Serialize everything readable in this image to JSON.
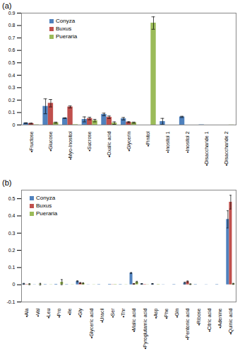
{
  "chart_data": [
    {
      "type": "bar",
      "title": "(a)",
      "categories": [
        "•Fructose",
        "•Glucose",
        "•Myo-Inositol",
        "•Sucrose",
        "•Oxalic acid",
        "•Glycerin",
        "•Pinitol",
        "•Inositol 1",
        "•Inositol 2",
        "•Disaccharide 1",
        "•Disaccharide 2"
      ],
      "series": [
        {
          "name": "Conyza",
          "color": "#4f81bd",
          "values": [
            0.015,
            0.15,
            0.055,
            0.045,
            0.085,
            0.05,
            0,
            0.028,
            0.065,
            0.002,
            0
          ],
          "errors": [
            0.003,
            0.06,
            0.003,
            0.02,
            0.01,
            0.01,
            0,
            0.025,
            0.005,
            0,
            0
          ]
        },
        {
          "name": "Buxus",
          "color": "#c0504d",
          "values": [
            0.012,
            0.175,
            0.145,
            0.052,
            0.062,
            0.022,
            0,
            0,
            0,
            0,
            0
          ],
          "errors": [
            0.003,
            0.03,
            0.008,
            0.01,
            0.01,
            0.005,
            0,
            0,
            0,
            0,
            0
          ]
        },
        {
          "name": "Pueraria",
          "color": "#9bbb59",
          "values": [
            0.002,
            0.018,
            0.003,
            0.035,
            0.015,
            0.018,
            0.82,
            0,
            0,
            0,
            0.001
          ],
          "errors": [
            0,
            0.005,
            0,
            0.01,
            0.01,
            0.005,
            0.05,
            0,
            0,
            0,
            0
          ]
        }
      ],
      "ylim": [
        0,
        0.9
      ],
      "yticks": [
        0,
        0.1,
        0.2,
        0.3,
        0.4,
        0.5,
        0.6,
        0.7,
        0.8,
        0.9
      ],
      "grid": false,
      "legend": "top-left"
    },
    {
      "type": "bar",
      "title": "(b)",
      "categories": [
        "•Ala",
        "•Val",
        "•Leu",
        "•Pro",
        "•Ile",
        "•Gly",
        "•Glyceric acid",
        "•Uracil",
        "•Ser",
        "•Thr",
        "•Malic acid",
        "•Pyroglutamic acid",
        "•Asp",
        "•Phe",
        "•Gln",
        "•Pentonic acid",
        "•Ribose",
        "•Citric acid",
        "•Adenine",
        "•Quinic acid"
      ],
      "series": [
        {
          "name": "Conyza",
          "color": "#4f81bd",
          "values": [
            0.005,
            0.001,
            0.002,
            0.003,
            0.002,
            0.02,
            0.001,
            0.002,
            0.003,
            0.002,
            0.068,
            0.005,
            0.005,
            0.001,
            0.002,
            0.01,
            0.002,
            0.001,
            0.002,
            0.38
          ],
          "errors": [
            0.003,
            0,
            0,
            0,
            0,
            0.003,
            0,
            0,
            0,
            0,
            0.003,
            0.002,
            0.002,
            0,
            0,
            0.005,
            0,
            0,
            0,
            0.05
          ]
        },
        {
          "name": "Buxus",
          "color": "#c0504d",
          "values": [
            0.002,
            0,
            0,
            0,
            0,
            0.01,
            0,
            0,
            0.001,
            0,
            0.005,
            0.002,
            0,
            0,
            0,
            0.018,
            0,
            0,
            0,
            0.48
          ],
          "errors": [
            0,
            0,
            0,
            0,
            0,
            0.003,
            0,
            0,
            0,
            0,
            0.002,
            0,
            0,
            0,
            0,
            0.004,
            0,
            0,
            0,
            0.04
          ]
        },
        {
          "name": "Pueraria",
          "color": "#9bbb59",
          "values": [
            0.003,
            0.003,
            0.001,
            0.015,
            0.001,
            0.008,
            0.001,
            0,
            0.002,
            0.001,
            0.015,
            0.001,
            0.002,
            0,
            0,
            0.003,
            0,
            0,
            0,
            0.005
          ],
          "errors": [
            0.003,
            0.005,
            0,
            0.015,
            0,
            0.003,
            0,
            0,
            0,
            0,
            0.005,
            0,
            0,
            0,
            0,
            0.002,
            0,
            0,
            0,
            0.003
          ]
        }
      ],
      "ylim": [
        -0.1,
        0.55
      ],
      "yticks": [
        -0.1,
        0,
        0.1,
        0.2,
        0.3,
        0.4,
        0.5
      ],
      "grid": false,
      "legend": "top-left"
    }
  ]
}
